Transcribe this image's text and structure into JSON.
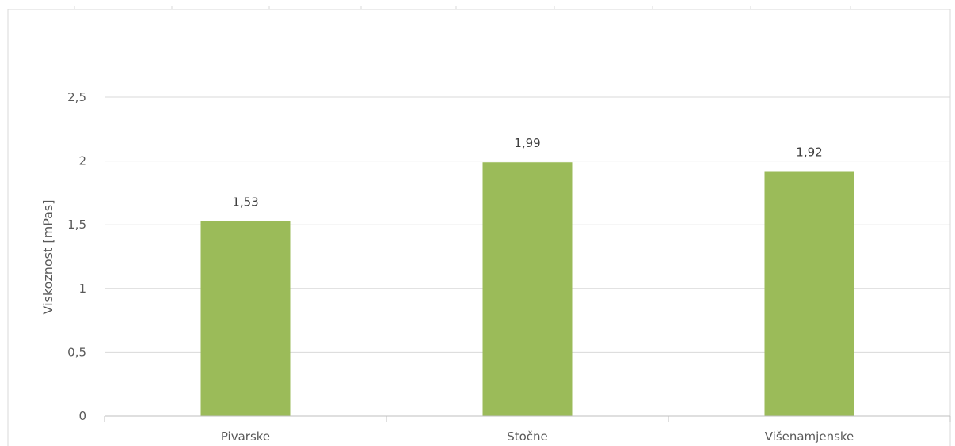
{
  "chart_data": {
    "type": "bar",
    "categories": [
      "Pivarske",
      "Stočne",
      "Višenamjenske"
    ],
    "values": [
      1.53,
      1.99,
      1.92
    ],
    "value_labels": [
      "1,53",
      "1,99",
      "1,92"
    ],
    "title": "",
    "xlabel": "",
    "ylabel": "Viskoznost [mPas]",
    "ylim": [
      0,
      2.5
    ],
    "yticks": [
      0,
      0.5,
      1,
      1.5,
      2,
      2.5
    ],
    "ytick_labels": [
      "0",
      "0,5",
      "1",
      "1,5",
      "2",
      "2,5"
    ],
    "grid": true,
    "legend": "none",
    "bar_color": "#9bbb59"
  }
}
